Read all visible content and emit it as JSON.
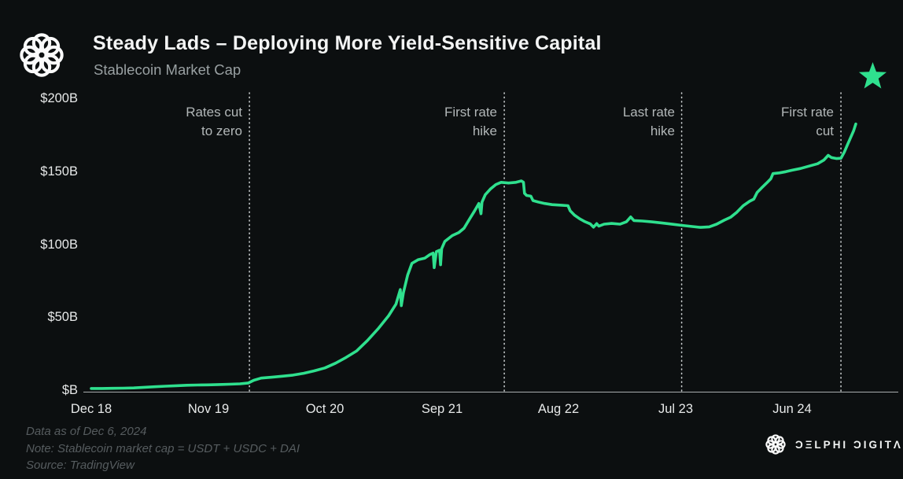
{
  "header": {
    "title": "Steady Lads – Deploying More Yield-Sensitive Capital",
    "subtitle": "Stablecoin Market Cap"
  },
  "icons": {
    "logo": "interlocking-knot",
    "star": "★",
    "brand_logo": "interlocking-knot"
  },
  "colors": {
    "background": "#0c0f10",
    "accent": "#2fe08e",
    "axis_line": "#a9adaf",
    "dotted_line": "#c6cacb",
    "title_text": "#f3f4f4",
    "subtitle_text": "#99a0a2",
    "annotation_text": "#b2b7b8",
    "tick_text": "#e7e9e9",
    "footer_text": "#565c5f"
  },
  "footer": {
    "line1": "Data as of Dec 6, 2024",
    "line2": "Note: Stablecoin market cap = USDT + USDC + DAI",
    "line3": "Source: TradingView"
  },
  "brand": {
    "name": "ƆΞLPHI ƆIGITΛL"
  },
  "chart_data": {
    "type": "line",
    "title": "Steady Lads – Deploying More Yield-Sensitive Capital",
    "subtitle": "Stablecoin Market Cap",
    "unit": "USD billions",
    "grid": false,
    "legend": false,
    "x_unit": "months since Dec 2018",
    "x_range": [
      0,
      76
    ],
    "ylim": [
      0,
      200
    ],
    "x_axis": {
      "ticks": [
        {
          "label": "Dec 18",
          "month": 0
        },
        {
          "label": "Nov 19",
          "month": 11
        },
        {
          "label": "Oct 20",
          "month": 22
        },
        {
          "label": "Sep 21",
          "month": 33
        },
        {
          "label": "Aug 22",
          "month": 44
        },
        {
          "label": "Jul 23",
          "month": 55
        },
        {
          "label": "Jun 24",
          "month": 66
        }
      ]
    },
    "y_axis": {
      "ticks": [
        {
          "label": "$B",
          "value": 0
        },
        {
          "label": "$50B",
          "value": 50
        },
        {
          "label": "$100B",
          "value": 100
        },
        {
          "label": "$150B",
          "value": 150
        },
        {
          "label": "$200B",
          "value": 200
        }
      ]
    },
    "annotations": [
      {
        "lines": [
          "Rates cut",
          "to zero"
        ],
        "month": 14.9
      },
      {
        "lines": [
          "First rate",
          "hike"
        ],
        "month": 38.9
      },
      {
        "lines": [
          "Last rate",
          "hike"
        ],
        "month": 55.6
      },
      {
        "lines": [
          "First rate",
          "cut"
        ],
        "month": 70.6
      }
    ],
    "series": [
      {
        "name": "Stablecoin Market Cap (USDT + USDC + DAI, $B)",
        "points": [
          [
            0,
            2.2
          ],
          [
            1,
            2.2
          ],
          [
            2,
            2.3
          ],
          [
            3,
            2.4
          ],
          [
            4,
            2.6
          ],
          [
            5,
            3.0
          ],
          [
            6,
            3.4
          ],
          [
            7,
            3.8
          ],
          [
            8,
            4.1
          ],
          [
            9,
            4.4
          ],
          [
            10,
            4.6
          ],
          [
            11,
            4.7
          ],
          [
            12,
            4.9
          ],
          [
            13,
            5.1
          ],
          [
            14,
            5.4
          ],
          [
            14.8,
            6.0
          ],
          [
            15.3,
            7.8
          ],
          [
            16,
            9.3
          ],
          [
            17,
            9.9
          ],
          [
            18,
            10.6
          ],
          [
            19,
            11.4
          ],
          [
            20,
            12.6
          ],
          [
            21,
            14.3
          ],
          [
            22,
            16.3
          ],
          [
            23,
            19.5
          ],
          [
            24,
            23.5
          ],
          [
            25,
            28
          ],
          [
            26,
            35
          ],
          [
            27,
            43
          ],
          [
            28,
            52
          ],
          [
            28.7,
            60
          ],
          [
            29.1,
            70
          ],
          [
            29.2,
            59
          ],
          [
            29.4,
            68
          ],
          [
            29.8,
            80
          ],
          [
            30.2,
            88
          ],
          [
            30.8,
            90.5
          ],
          [
            31.4,
            91.5
          ],
          [
            31.9,
            94
          ],
          [
            32.2,
            95
          ],
          [
            32.3,
            85
          ],
          [
            32.5,
            96
          ],
          [
            32.8,
            97
          ],
          [
            32.9,
            87
          ],
          [
            33.0,
            98
          ],
          [
            33.3,
            103
          ],
          [
            34,
            107
          ],
          [
            34.6,
            109
          ],
          [
            35.1,
            112
          ],
          [
            35.6,
            118
          ],
          [
            36.1,
            124
          ],
          [
            36.5,
            129
          ],
          [
            36.7,
            122
          ],
          [
            36.8,
            130
          ],
          [
            37.1,
            135
          ],
          [
            37.6,
            139
          ],
          [
            38.1,
            142
          ],
          [
            38.6,
            143.5
          ],
          [
            39.3,
            143
          ],
          [
            40.0,
            143.5
          ],
          [
            40.5,
            144.5
          ],
          [
            40.7,
            143.5
          ],
          [
            40.8,
            136
          ],
          [
            41.0,
            134.5
          ],
          [
            41.4,
            134
          ],
          [
            41.6,
            131
          ],
          [
            42.1,
            130
          ],
          [
            42.7,
            129
          ],
          [
            43.4,
            128.2
          ],
          [
            44.3,
            127.8
          ],
          [
            44.9,
            127.5
          ],
          [
            45.1,
            124
          ],
          [
            45.5,
            121
          ],
          [
            46.0,
            118.5
          ],
          [
            46.5,
            116.5
          ],
          [
            47.0,
            115
          ],
          [
            47.3,
            112.8
          ],
          [
            47.6,
            115.2
          ],
          [
            47.8,
            113.5
          ],
          [
            48.3,
            114.8
          ],
          [
            49.0,
            115.3
          ],
          [
            49.8,
            114.8
          ],
          [
            50.4,
            116.5
          ],
          [
            50.8,
            119.8
          ],
          [
            51.1,
            117.3
          ],
          [
            51.9,
            117
          ],
          [
            52.8,
            116.4
          ],
          [
            53.8,
            115.6
          ],
          [
            54.8,
            114.7
          ],
          [
            55.6,
            114
          ],
          [
            56.6,
            113.2
          ],
          [
            57.4,
            112.6
          ],
          [
            58.2,
            113
          ],
          [
            58.9,
            114.8
          ],
          [
            59.6,
            117.5
          ],
          [
            60.2,
            119.5
          ],
          [
            60.8,
            123
          ],
          [
            61.4,
            127.5
          ],
          [
            62.0,
            130.5
          ],
          [
            62.4,
            132
          ],
          [
            62.7,
            136.5
          ],
          [
            63.1,
            139.5
          ],
          [
            63.6,
            143
          ],
          [
            64.0,
            146
          ],
          [
            64.2,
            149.5
          ],
          [
            64.8,
            150
          ],
          [
            65.4,
            150.8
          ],
          [
            66.0,
            151.8
          ],
          [
            66.8,
            153
          ],
          [
            67.6,
            154.6
          ],
          [
            68.4,
            156.2
          ],
          [
            69.0,
            158.8
          ],
          [
            69.4,
            162
          ],
          [
            69.7,
            160.5
          ],
          [
            70.2,
            159.8
          ],
          [
            70.6,
            160
          ],
          [
            70.9,
            164
          ],
          [
            71.2,
            169
          ],
          [
            71.5,
            174
          ],
          [
            71.8,
            179
          ],
          [
            72,
            183.5
          ]
        ]
      }
    ]
  }
}
